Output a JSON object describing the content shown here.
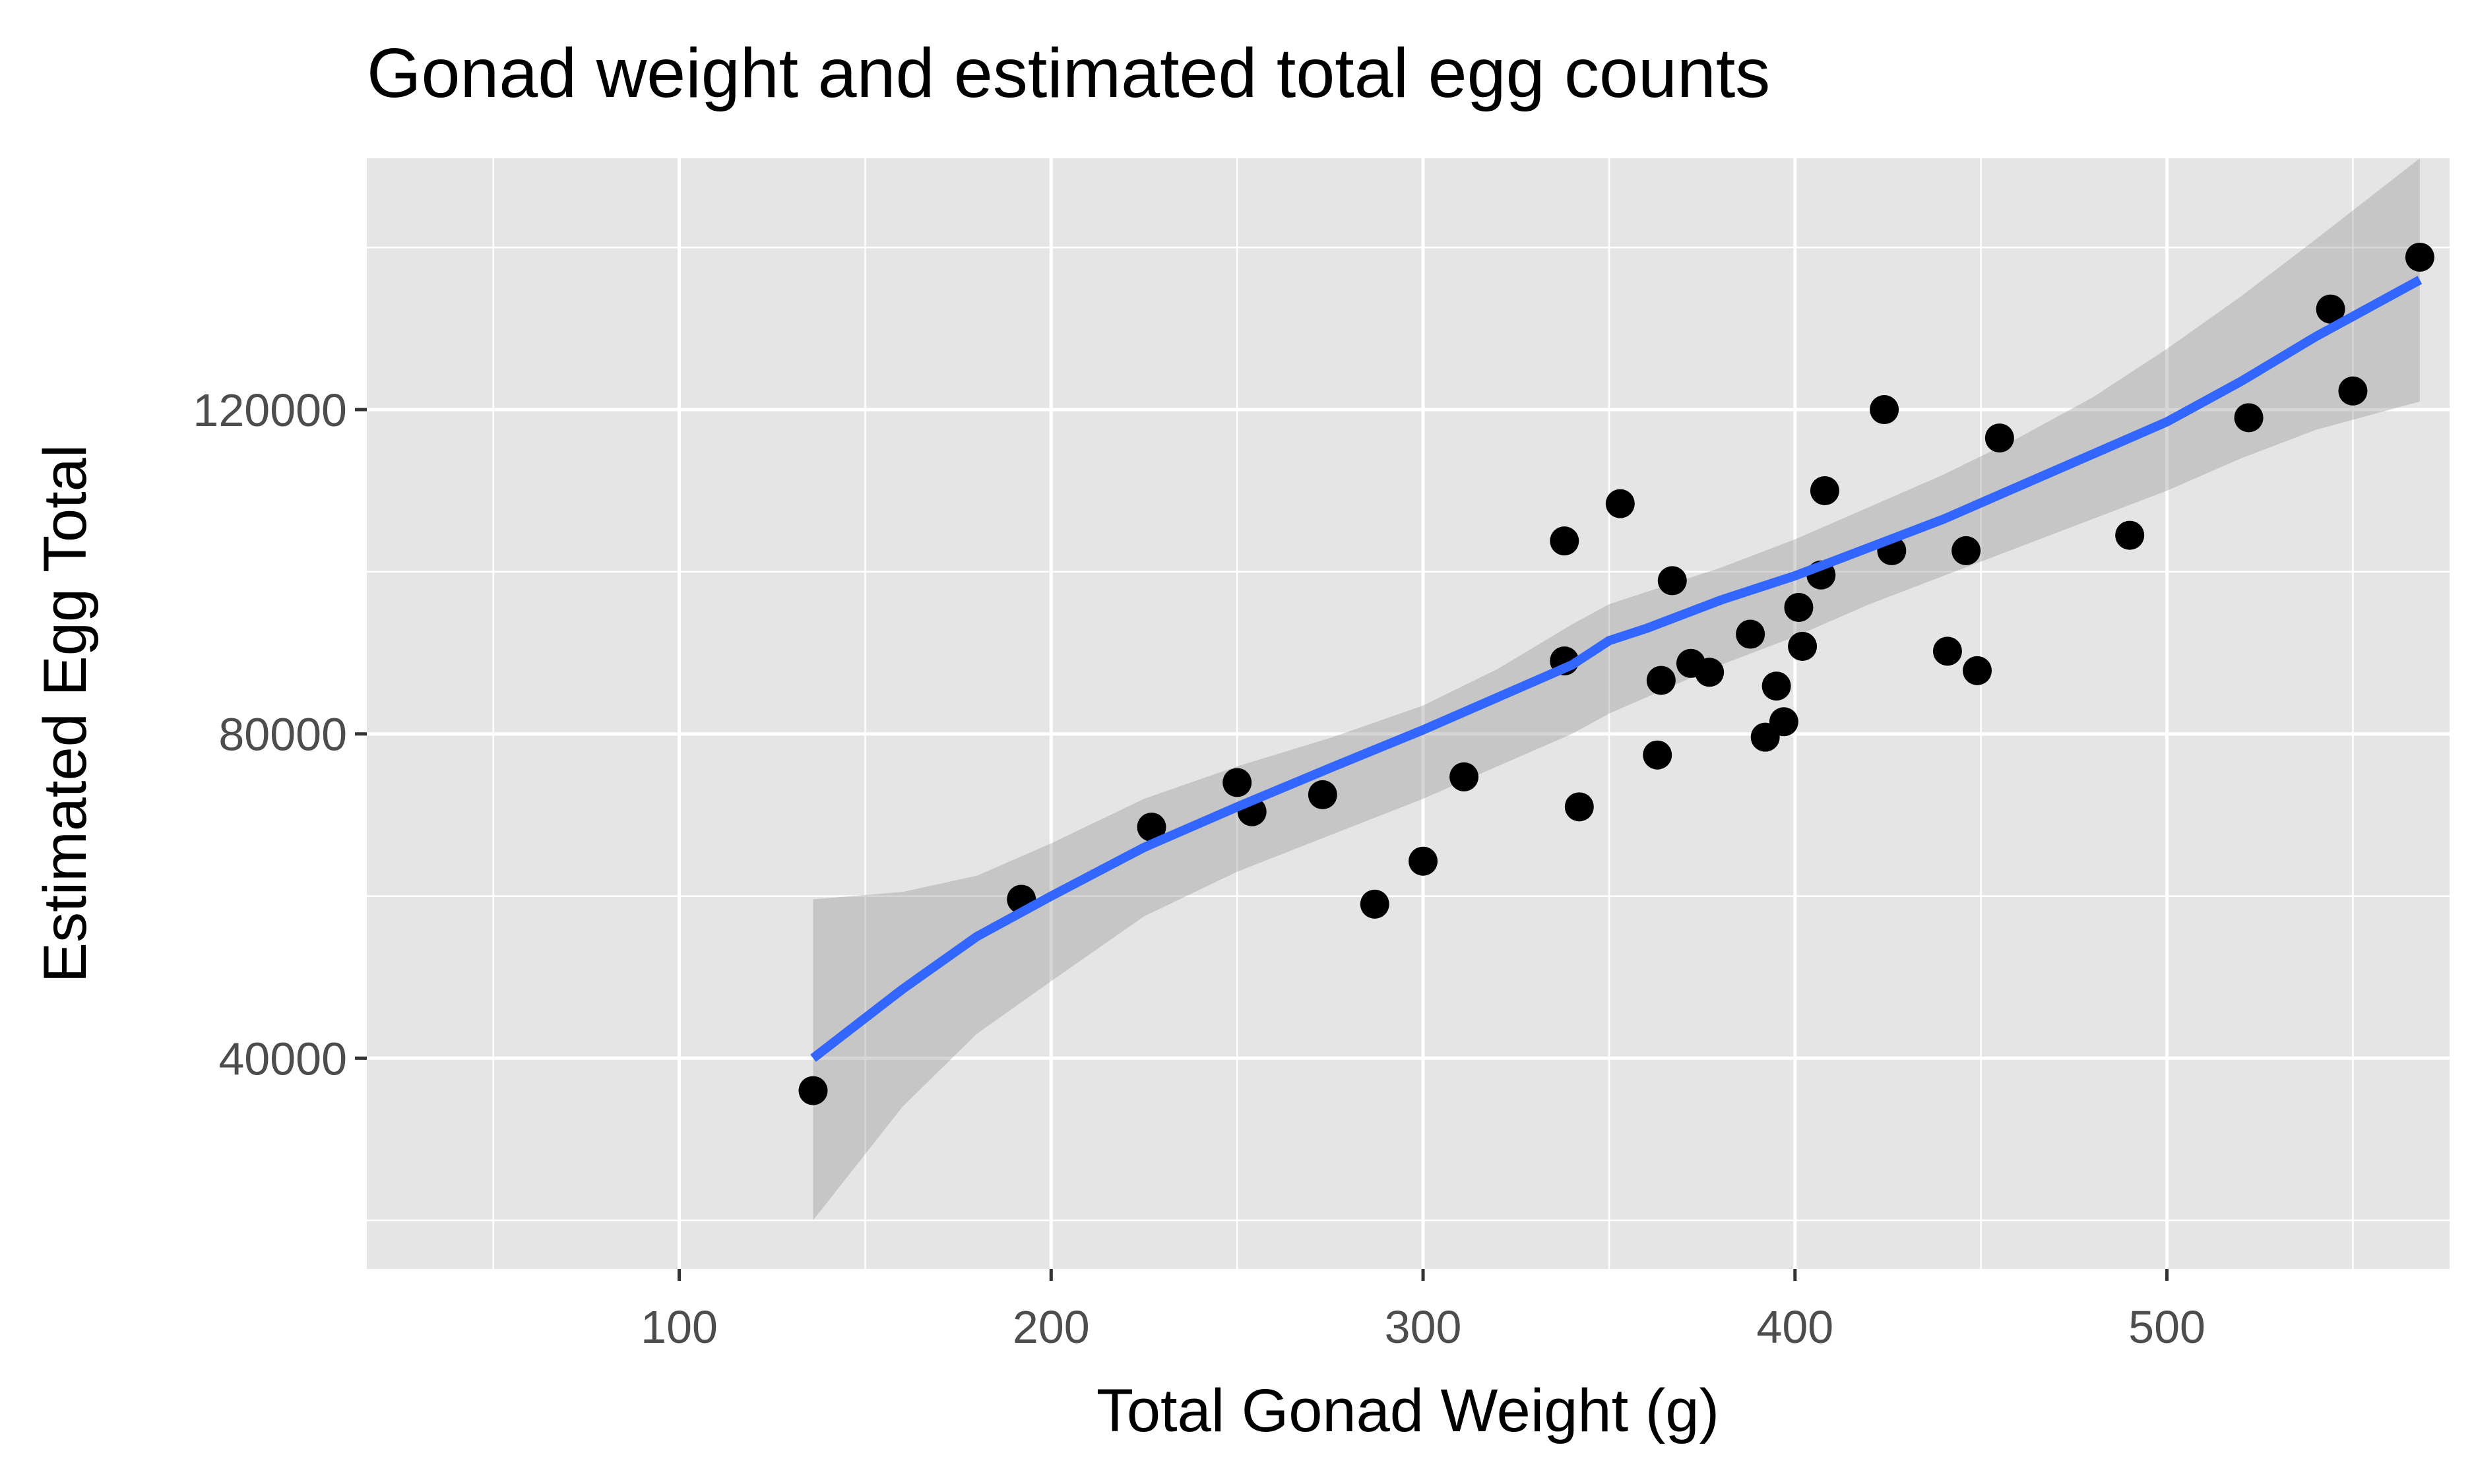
{
  "chart_data": {
    "type": "scatter",
    "title": "Gonad weight and estimated total egg counts",
    "xlabel": "Total Gonad Weight (g)",
    "ylabel": "Estimated Egg Total",
    "xlim": [
      16,
      576
    ],
    "ylim": [
      14000,
      151000
    ],
    "x_ticks": [
      100,
      200,
      300,
      400,
      500
    ],
    "x_tick_labels": [
      "100",
      "200",
      "300",
      "400",
      "500"
    ],
    "x_minor_ticks": [
      50,
      150,
      250,
      350,
      450,
      550
    ],
    "y_ticks": [
      40000,
      80000,
      120000
    ],
    "y_tick_labels": [
      "40000",
      "80000",
      "120000"
    ],
    "y_minor_ticks": [
      20000,
      60000,
      100000,
      140000
    ],
    "grid": true,
    "legend": "none",
    "colors": {
      "panel_background": "#e5e5e5",
      "grid_line": "#ffffff",
      "points": "#000000",
      "smooth_line": "#3366ff",
      "confidence_band": "#999999",
      "tick_label": "#4d4d4d",
      "tick_mark": "#333333"
    },
    "series": [
      {
        "type": "scatter",
        "x": [
          136,
          192,
          227,
          250,
          254,
          273,
          287,
          300,
          311,
          338,
          338,
          342,
          353,
          363,
          364,
          367,
          372,
          377,
          388,
          392,
          395,
          397,
          401,
          402,
          407,
          408,
          424,
          426,
          441,
          446,
          449,
          455,
          490,
          522,
          544,
          550,
          568
        ],
        "y": [
          36000,
          59600,
          68500,
          74000,
          70400,
          72500,
          59000,
          64300,
          74700,
          89000,
          103800,
          71000,
          108400,
          77400,
          86600,
          98900,
          88700,
          87600,
          92300,
          79600,
          85900,
          81500,
          95600,
          90800,
          99600,
          110000,
          120000,
          102600,
          90200,
          102600,
          87800,
          116500,
          104500,
          119000,
          132400,
          122300,
          138800
        ]
      },
      {
        "type": "smooth",
        "x": [
          136,
          160,
          180,
          200,
          225,
          250,
          275,
          300,
          320,
          340,
          350,
          360,
          380,
          400,
          420,
          440,
          460,
          480,
          500,
          520,
          540,
          568
        ],
        "y": [
          40000,
          48500,
          55000,
          60000,
          66000,
          71000,
          75800,
          80500,
          84500,
          88500,
          91500,
          93000,
          96500,
          99500,
          103000,
          106500,
          110500,
          114500,
          118500,
          123500,
          129000,
          136000
        ],
        "lower": [
          20000,
          34000,
          43000,
          49500,
          57500,
          63000,
          67500,
          72000,
          76000,
          80000,
          82500,
          84500,
          88500,
          92000,
          96000,
          99500,
          103000,
          106500,
          110000,
          114000,
          117500,
          121000
        ],
        "upper": [
          59600,
          60500,
          62500,
          66500,
          72000,
          76000,
          79500,
          83500,
          88000,
          93500,
          96000,
          97500,
          100500,
          104000,
          108000,
          112000,
          116500,
          121500,
          127500,
          134000,
          141000,
          151000
        ]
      }
    ]
  }
}
